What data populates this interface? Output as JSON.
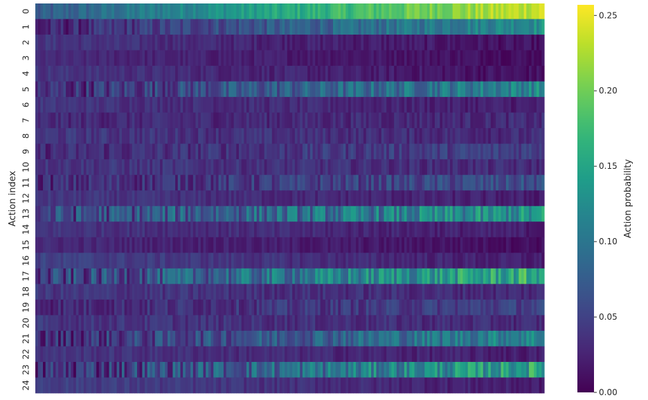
{
  "chart_data": {
    "type": "heatmap",
    "title": "",
    "xlabel": "",
    "ylabel": "Action index",
    "colorbar_label": "Action probability",
    "colormap": "viridis",
    "vmin": 0.0,
    "vmax": 0.257,
    "colorbar_ticks": [
      "0.00",
      "0.05",
      "0.10",
      "0.15",
      "0.20",
      "0.25"
    ],
    "rows": [
      "0",
      "1",
      "2",
      "3",
      "4",
      "5",
      "6",
      "7",
      "8",
      "9",
      "10",
      "11",
      "12",
      "13",
      "14",
      "15",
      "16",
      "17",
      "18",
      "19",
      "20",
      "21",
      "22",
      "23",
      "24"
    ],
    "columns_count": 200,
    "x_ticks_visible": false,
    "row_profiles": [
      {
        "row": 0,
        "start": 0.07,
        "end": 0.24,
        "noise": 0.02
      },
      {
        "row": 1,
        "start": 0.02,
        "end": 0.13,
        "noise": 0.025
      },
      {
        "row": 2,
        "start": 0.04,
        "end": 0.01,
        "noise": 0.012
      },
      {
        "row": 3,
        "start": 0.03,
        "end": 0.01,
        "noise": 0.01
      },
      {
        "row": 4,
        "start": 0.04,
        "end": 0.01,
        "noise": 0.012
      },
      {
        "row": 5,
        "start": 0.03,
        "end": 0.12,
        "noise": 0.035
      },
      {
        "row": 6,
        "start": 0.04,
        "end": 0.02,
        "noise": 0.012
      },
      {
        "row": 7,
        "start": 0.03,
        "end": 0.03,
        "noise": 0.015
      },
      {
        "row": 8,
        "start": 0.04,
        "end": 0.03,
        "noise": 0.015
      },
      {
        "row": 9,
        "start": 0.03,
        "end": 0.05,
        "noise": 0.02
      },
      {
        "row": 10,
        "start": 0.04,
        "end": 0.03,
        "noise": 0.015
      },
      {
        "row": 11,
        "start": 0.03,
        "end": 0.06,
        "noise": 0.025
      },
      {
        "row": 12,
        "start": 0.04,
        "end": 0.02,
        "noise": 0.012
      },
      {
        "row": 13,
        "start": 0.05,
        "end": 0.13,
        "noise": 0.045
      },
      {
        "row": 14,
        "start": 0.04,
        "end": 0.02,
        "noise": 0.012
      },
      {
        "row": 15,
        "start": 0.03,
        "end": 0.01,
        "noise": 0.01
      },
      {
        "row": 16,
        "start": 0.05,
        "end": 0.02,
        "noise": 0.012
      },
      {
        "row": 17,
        "start": 0.04,
        "end": 0.16,
        "noise": 0.045
      },
      {
        "row": 18,
        "start": 0.04,
        "end": 0.03,
        "noise": 0.015
      },
      {
        "row": 19,
        "start": 0.03,
        "end": 0.05,
        "noise": 0.02
      },
      {
        "row": 20,
        "start": 0.04,
        "end": 0.03,
        "noise": 0.015
      },
      {
        "row": 21,
        "start": 0.03,
        "end": 0.12,
        "noise": 0.035
      },
      {
        "row": 22,
        "start": 0.04,
        "end": 0.02,
        "noise": 0.012
      },
      {
        "row": 23,
        "start": 0.03,
        "end": 0.15,
        "noise": 0.045
      },
      {
        "row": 24,
        "start": 0.05,
        "end": 0.02,
        "noise": 0.012
      }
    ]
  }
}
